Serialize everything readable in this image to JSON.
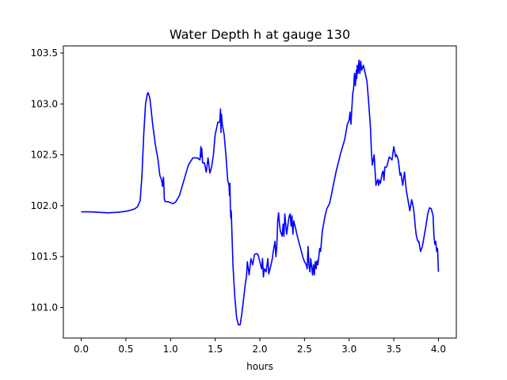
{
  "chart_data": {
    "type": "line",
    "title": "Water Depth h at gauge 130",
    "xlabel": "hours",
    "ylabel": "",
    "xlim": [
      -0.2,
      4.2
    ],
    "ylim": [
      100.7,
      103.57
    ],
    "xticks": [
      0.0,
      0.5,
      1.0,
      1.5,
      2.0,
      2.5,
      3.0,
      3.5,
      4.0
    ],
    "xtick_labels": [
      "0.0",
      "0.5",
      "1.0",
      "1.5",
      "2.0",
      "2.5",
      "3.0",
      "3.5",
      "4.0"
    ],
    "yticks": [
      101.0,
      101.5,
      102.0,
      102.5,
      103.0,
      103.5
    ],
    "ytick_labels": [
      "101.0",
      "101.5",
      "102.0",
      "102.5",
      "103.0",
      "103.5"
    ],
    "grid": false,
    "legend": "none",
    "series": [
      {
        "color": "#0000ff",
        "x": [
          0.0,
          0.1,
          0.2,
          0.3,
          0.4,
          0.5,
          0.55,
          0.6,
          0.63,
          0.66,
          0.68,
          0.7,
          0.72,
          0.74,
          0.75,
          0.77,
          0.8,
          0.83,
          0.86,
          0.88,
          0.9,
          0.91,
          0.92,
          0.925,
          0.93,
          0.94,
          0.95,
          0.97,
          1.0,
          1.03,
          1.06,
          1.1,
          1.15,
          1.2,
          1.25,
          1.3,
          1.33,
          1.34,
          1.345,
          1.35,
          1.36,
          1.37,
          1.38,
          1.4,
          1.42,
          1.44,
          1.46,
          1.48,
          1.5,
          1.52,
          1.53,
          1.55,
          1.56,
          1.565,
          1.57,
          1.58,
          1.6,
          1.62,
          1.64,
          1.655,
          1.66,
          1.665,
          1.67,
          1.675,
          1.68,
          1.685,
          1.7,
          1.72,
          1.74,
          1.76,
          1.78,
          1.8,
          1.82,
          1.84,
          1.85,
          1.86,
          1.88,
          1.9,
          1.92,
          1.94,
          1.96,
          1.98,
          2.0,
          2.02,
          2.03,
          2.04,
          2.05,
          2.07,
          2.09,
          2.1,
          2.12,
          2.14,
          2.15,
          2.17,
          2.18,
          2.19,
          2.2,
          2.21,
          2.22,
          2.23,
          2.25,
          2.26,
          2.27,
          2.28,
          2.3,
          2.32,
          2.33,
          2.34,
          2.35,
          2.36,
          2.37,
          2.38,
          2.4,
          2.42,
          2.45,
          2.48,
          2.5,
          2.52,
          2.53,
          2.54,
          2.55,
          2.56,
          2.57,
          2.58,
          2.59,
          2.6,
          2.61,
          2.62,
          2.63,
          2.64,
          2.65,
          2.66,
          2.67,
          2.68,
          2.7,
          2.73,
          2.75,
          2.78,
          2.8,
          2.85,
          2.9,
          2.95,
          2.98,
          3.0,
          3.01,
          3.02,
          3.03,
          3.04,
          3.05,
          3.06,
          3.07,
          3.08,
          3.085,
          3.09,
          3.1,
          3.11,
          3.12,
          3.13,
          3.14,
          3.16,
          3.18,
          3.2,
          3.22,
          3.24,
          3.25,
          3.26,
          3.28,
          3.3,
          3.32,
          3.33,
          3.34,
          3.35,
          3.37,
          3.38,
          3.39,
          3.4,
          3.42,
          3.45,
          3.48,
          3.5,
          3.52,
          3.53,
          3.54,
          3.55,
          3.56,
          3.57,
          3.58,
          3.6,
          3.62,
          3.64,
          3.66,
          3.68,
          3.7,
          3.72,
          3.73,
          3.74,
          3.75,
          3.76,
          3.77,
          3.78,
          3.8,
          3.82,
          3.84,
          3.86,
          3.88,
          3.9,
          3.92,
          3.94,
          3.95,
          3.96,
          3.97,
          3.98,
          3.99,
          4.0
        ],
        "y": [
          101.94,
          101.94,
          101.935,
          101.93,
          101.935,
          101.945,
          101.955,
          101.97,
          101.99,
          102.05,
          102.3,
          102.7,
          103.0,
          103.1,
          103.11,
          103.05,
          102.8,
          102.6,
          102.45,
          102.3,
          102.25,
          102.19,
          102.28,
          102.22,
          102.07,
          102.04,
          102.04,
          102.04,
          102.03,
          102.02,
          102.04,
          102.1,
          102.25,
          102.4,
          102.47,
          102.47,
          102.45,
          102.58,
          102.48,
          102.56,
          102.42,
          102.42,
          102.42,
          102.33,
          102.47,
          102.32,
          102.38,
          102.5,
          102.7,
          102.78,
          102.82,
          102.82,
          102.95,
          102.72,
          102.9,
          102.8,
          102.7,
          102.5,
          102.25,
          102.2,
          102.1,
          102.22,
          101.98,
          101.88,
          101.95,
          101.8,
          101.4,
          101.1,
          100.9,
          100.83,
          100.83,
          100.95,
          101.1,
          101.25,
          101.3,
          101.45,
          101.32,
          101.48,
          101.42,
          101.52,
          101.53,
          101.52,
          101.45,
          101.38,
          101.48,
          101.3,
          101.38,
          101.35,
          101.48,
          101.33,
          101.4,
          101.48,
          101.55,
          101.65,
          101.5,
          101.6,
          101.85,
          101.93,
          101.82,
          101.75,
          101.7,
          101.82,
          101.7,
          101.92,
          101.72,
          101.85,
          101.9,
          101.92,
          101.8,
          101.9,
          101.72,
          101.85,
          101.78,
          101.7,
          101.6,
          101.5,
          101.45,
          101.42,
          101.38,
          101.6,
          101.42,
          101.35,
          101.48,
          101.4,
          101.32,
          101.42,
          101.32,
          101.45,
          101.38,
          101.46,
          101.42,
          101.5,
          101.58,
          101.55,
          101.75,
          101.9,
          101.97,
          102.02,
          102.1,
          102.32,
          102.5,
          102.65,
          102.8,
          102.84,
          102.92,
          102.8,
          102.95,
          103.1,
          103.15,
          103.3,
          103.18,
          103.33,
          103.25,
          103.38,
          103.3,
          103.43,
          103.3,
          103.42,
          103.33,
          103.38,
          103.3,
          103.22,
          103.0,
          102.75,
          102.52,
          102.4,
          102.5,
          102.2,
          102.26,
          102.2,
          102.25,
          102.22,
          102.32,
          102.34,
          102.25,
          102.38,
          102.38,
          102.48,
          102.45,
          102.58,
          102.48,
          102.5,
          102.48,
          102.45,
          102.38,
          102.3,
          102.32,
          102.2,
          102.33,
          102.15,
          102.05,
          101.95,
          102.06,
          101.98,
          101.9,
          101.8,
          101.72,
          101.68,
          101.65,
          101.65,
          101.55,
          101.6,
          101.7,
          101.8,
          101.92,
          101.98,
          101.97,
          101.9,
          101.7,
          101.62,
          101.65,
          101.55,
          101.58,
          101.35
        ]
      }
    ]
  }
}
